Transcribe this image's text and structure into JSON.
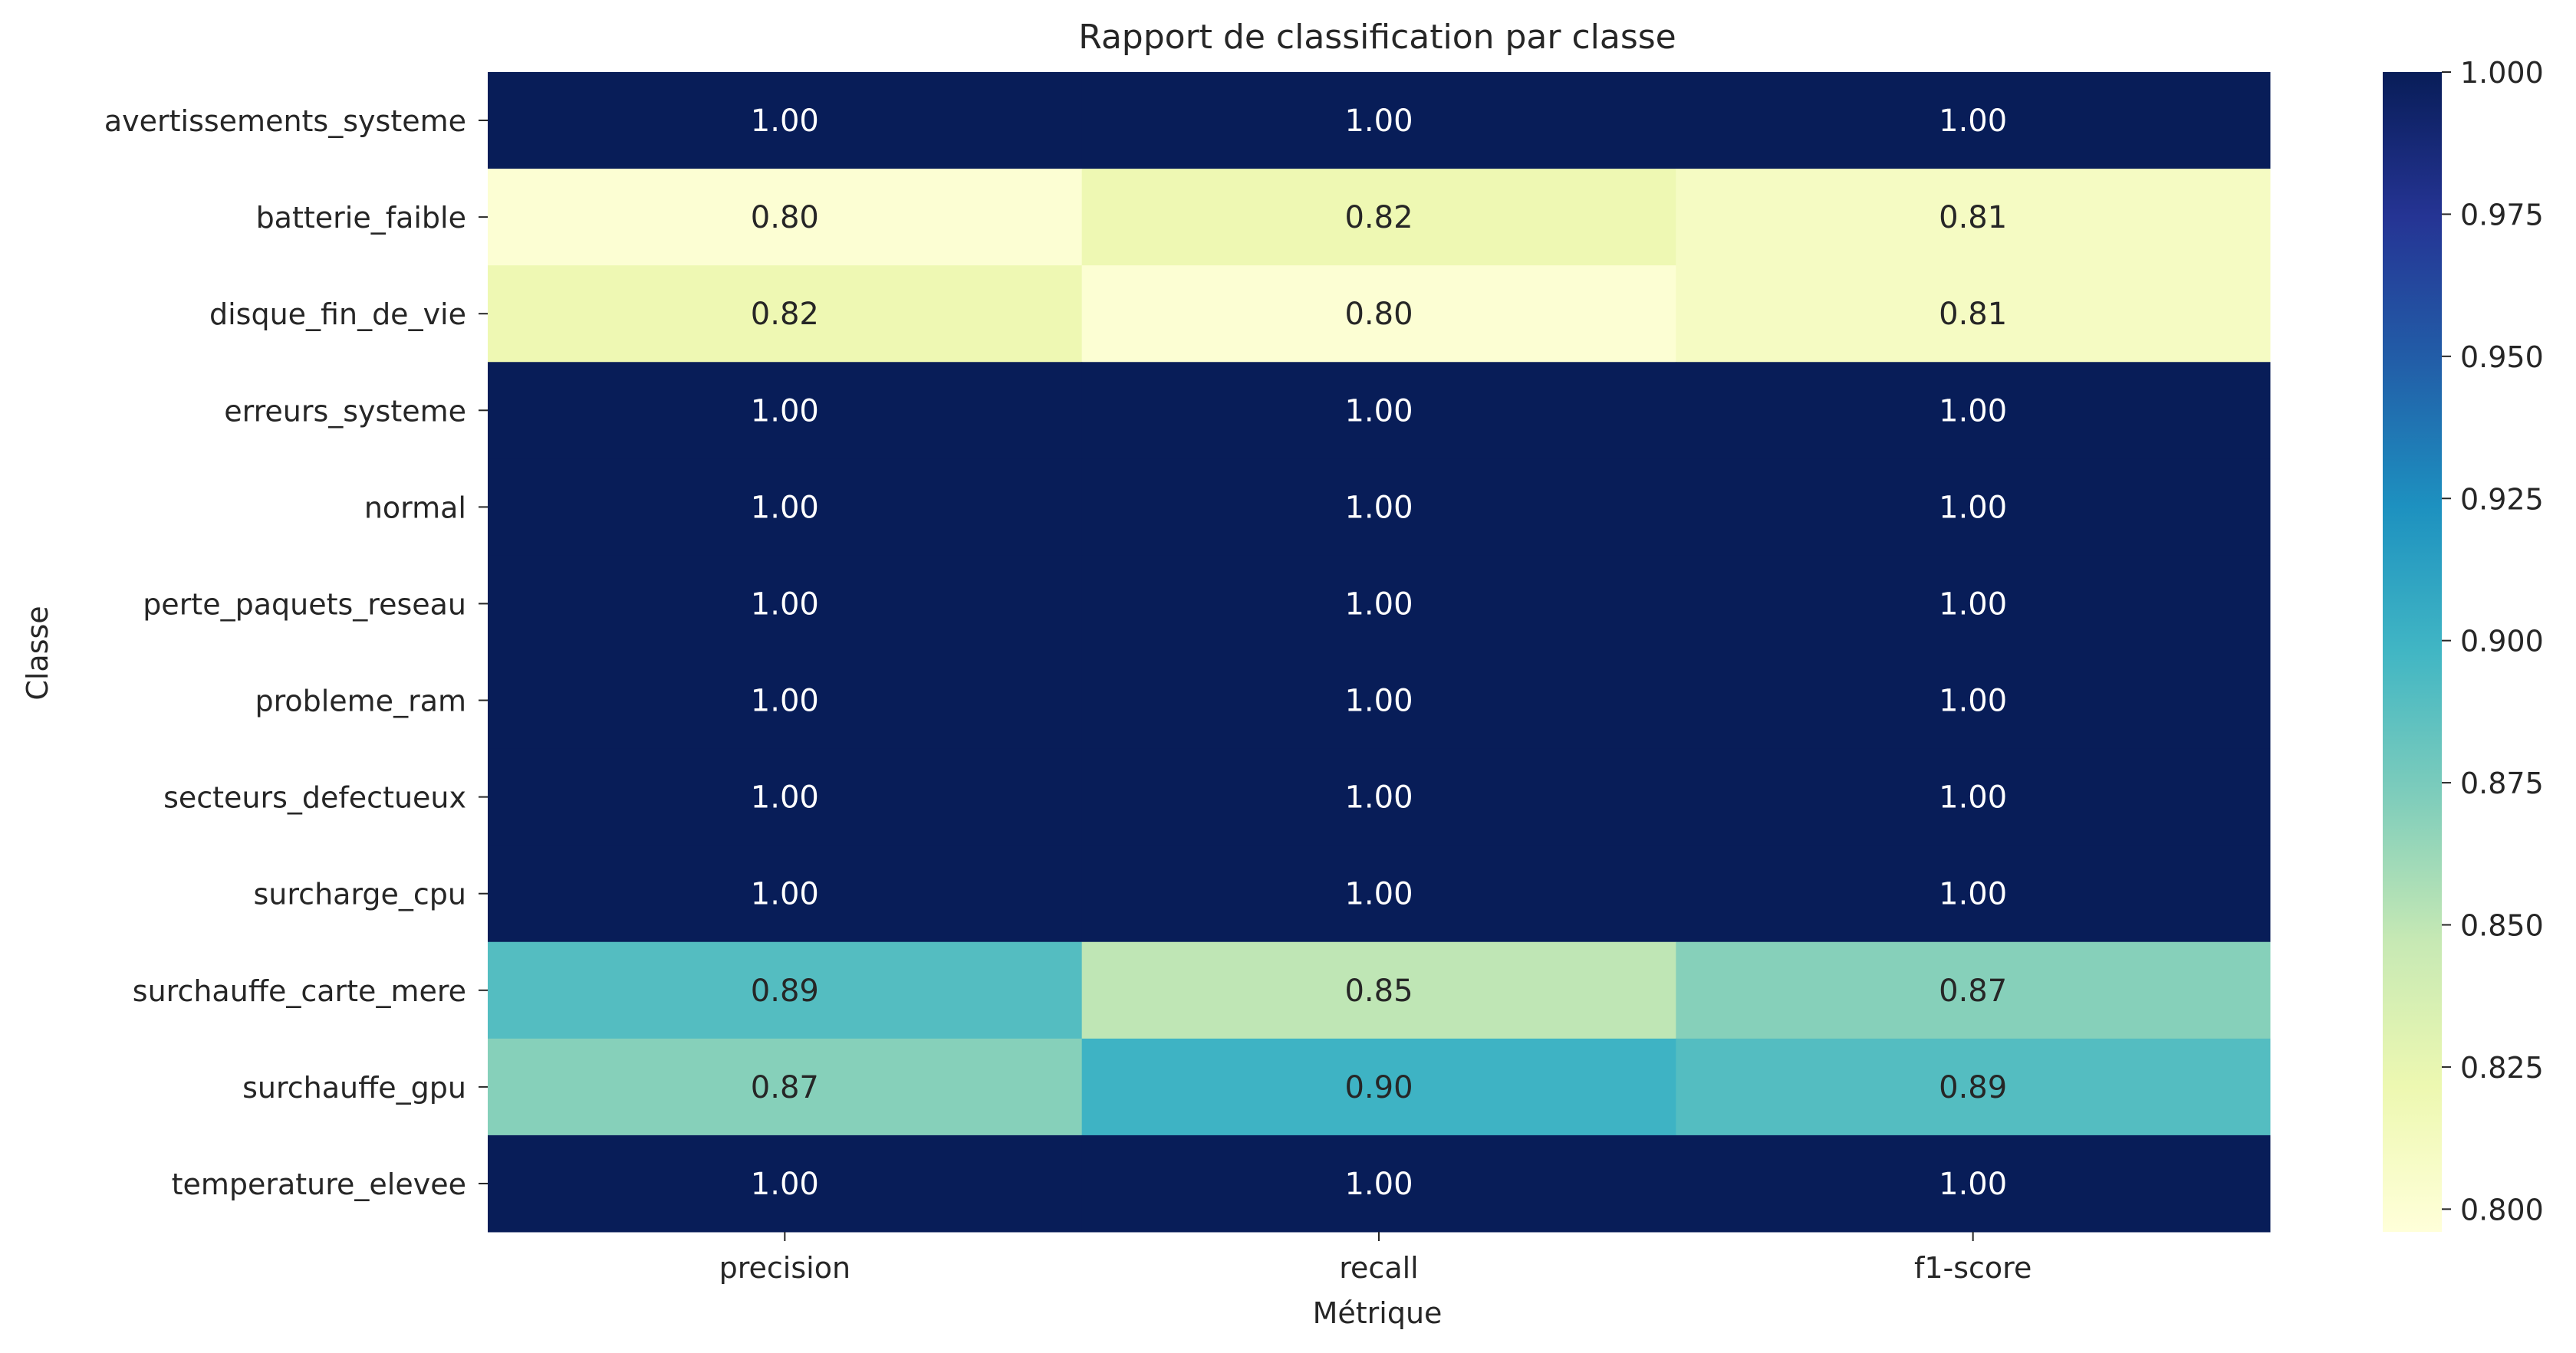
{
  "chart_data": {
    "type": "heatmap",
    "title": "Rapport de classification par classe",
    "xlabel": "Métrique",
    "ylabel": "Classe",
    "columns": [
      "precision",
      "recall",
      "f1-score"
    ],
    "rows": [
      "avertissements_systeme",
      "batterie_faible",
      "disque_fin_de_vie",
      "erreurs_systeme",
      "normal",
      "perte_paquets_reseau",
      "probleme_ram",
      "secteurs_defectueux",
      "surcharge_cpu",
      "surchauffe_carte_mere",
      "surchauffe_gpu",
      "temperature_elevee"
    ],
    "values": [
      [
        1.0,
        1.0,
        1.0
      ],
      [
        0.8,
        0.82,
        0.81
      ],
      [
        0.82,
        0.8,
        0.81
      ],
      [
        1.0,
        1.0,
        1.0
      ],
      [
        1.0,
        1.0,
        1.0
      ],
      [
        1.0,
        1.0,
        1.0
      ],
      [
        1.0,
        1.0,
        1.0
      ],
      [
        1.0,
        1.0,
        1.0
      ],
      [
        1.0,
        1.0,
        1.0
      ],
      [
        0.89,
        0.85,
        0.87
      ],
      [
        0.87,
        0.9,
        0.89
      ],
      [
        1.0,
        1.0,
        1.0
      ]
    ],
    "value_format": "0.00",
    "colormap": "YlGnBu",
    "colorbar": {
      "range": [
        0.796,
        1.0
      ],
      "ticks": [
        "0.800",
        "0.825",
        "0.850",
        "0.875",
        "0.900",
        "0.925",
        "0.950",
        "0.975",
        "1.000"
      ]
    }
  }
}
